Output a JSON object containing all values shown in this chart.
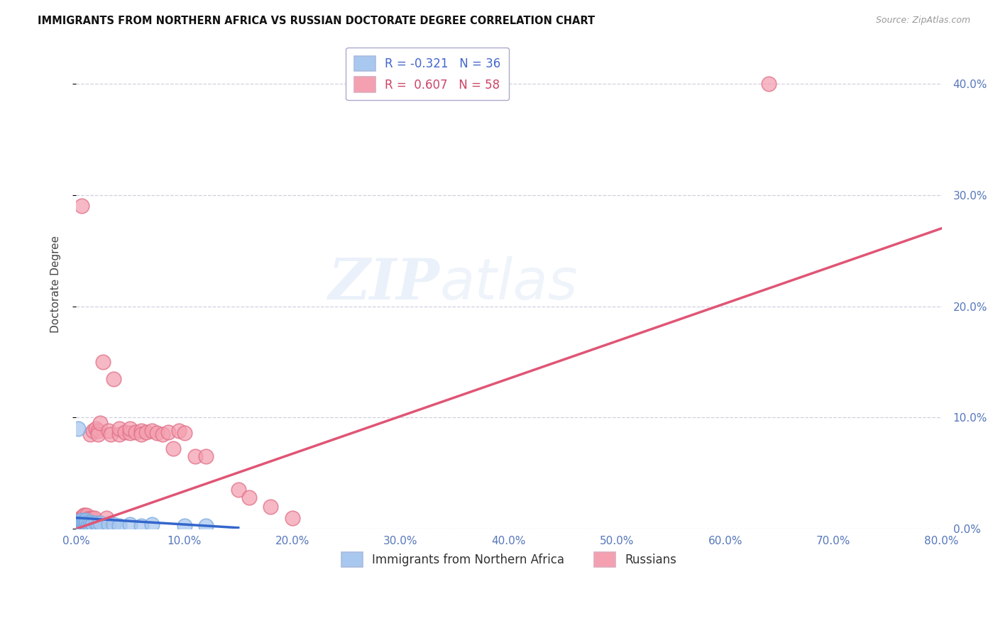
{
  "title": "IMMIGRANTS FROM NORTHERN AFRICA VS RUSSIAN DOCTORATE DEGREE CORRELATION CHART",
  "source": "Source: ZipAtlas.com",
  "ylabel": "Doctorate Degree",
  "xlim": [
    0,
    0.8
  ],
  "ylim": [
    0,
    0.44
  ],
  "xticks": [
    0.0,
    0.1,
    0.2,
    0.3,
    0.4,
    0.5,
    0.6,
    0.7,
    0.8
  ],
  "yticks": [
    0.0,
    0.1,
    0.2,
    0.3,
    0.4
  ],
  "legend_blue_r": "-0.321",
  "legend_blue_n": "36",
  "legend_pink_r": "0.607",
  "legend_pink_n": "58",
  "blue_color": "#a8c8f0",
  "pink_color": "#f4a0b0",
  "blue_line_color": "#3366cc",
  "pink_line_color": "#e05575",
  "blue_edge_color": "#7aaade",
  "pink_edge_color": "#e07088",
  "watermark_zip": "ZIP",
  "watermark_atlas": "atlas",
  "legend1_label": "Immigrants from Northern Africa",
  "legend2_label": "Russians",
  "blue_scatter_x": [
    0.001,
    0.002,
    0.003,
    0.003,
    0.004,
    0.004,
    0.005,
    0.005,
    0.006,
    0.006,
    0.007,
    0.007,
    0.008,
    0.008,
    0.009,
    0.009,
    0.01,
    0.01,
    0.011,
    0.012,
    0.013,
    0.014,
    0.015,
    0.016,
    0.018,
    0.02,
    0.022,
    0.03,
    0.035,
    0.04,
    0.05,
    0.06,
    0.07,
    0.1,
    0.12,
    0.002
  ],
  "blue_scatter_y": [
    0.005,
    0.004,
    0.003,
    0.006,
    0.005,
    0.007,
    0.004,
    0.008,
    0.005,
    0.006,
    0.004,
    0.007,
    0.005,
    0.006,
    0.004,
    0.008,
    0.005,
    0.006,
    0.004,
    0.005,
    0.004,
    0.006,
    0.005,
    0.004,
    0.005,
    0.004,
    0.005,
    0.004,
    0.004,
    0.003,
    0.004,
    0.003,
    0.004,
    0.003,
    0.003,
    0.09
  ],
  "pink_scatter_x": [
    0.001,
    0.002,
    0.003,
    0.003,
    0.004,
    0.004,
    0.005,
    0.005,
    0.006,
    0.006,
    0.007,
    0.007,
    0.008,
    0.008,
    0.009,
    0.009,
    0.01,
    0.01,
    0.011,
    0.012,
    0.013,
    0.014,
    0.015,
    0.016,
    0.017,
    0.018,
    0.02,
    0.02,
    0.022,
    0.025,
    0.028,
    0.03,
    0.032,
    0.035,
    0.04,
    0.04,
    0.045,
    0.05,
    0.05,
    0.055,
    0.06,
    0.06,
    0.065,
    0.07,
    0.075,
    0.08,
    0.085,
    0.09,
    0.095,
    0.1,
    0.11,
    0.12,
    0.15,
    0.16,
    0.18,
    0.2,
    0.64,
    0.005
  ],
  "pink_scatter_y": [
    0.004,
    0.006,
    0.005,
    0.008,
    0.006,
    0.01,
    0.005,
    0.009,
    0.006,
    0.01,
    0.007,
    0.012,
    0.008,
    0.012,
    0.007,
    0.01,
    0.008,
    0.012,
    0.009,
    0.008,
    0.085,
    0.009,
    0.01,
    0.088,
    0.01,
    0.09,
    0.088,
    0.085,
    0.095,
    0.15,
    0.01,
    0.088,
    0.085,
    0.135,
    0.085,
    0.09,
    0.087,
    0.086,
    0.09,
    0.087,
    0.088,
    0.085,
    0.087,
    0.088,
    0.086,
    0.085,
    0.087,
    0.072,
    0.088,
    0.086,
    0.065,
    0.065,
    0.035,
    0.028,
    0.02,
    0.01,
    0.4,
    0.29
  ],
  "blue_trend_x0": 0.0,
  "blue_trend_x1": 0.15,
  "blue_trend_y0": 0.01,
  "blue_trend_y1": 0.001,
  "pink_trend_x0": 0.0,
  "pink_trend_x1": 0.8,
  "pink_trend_y0": 0.0,
  "pink_trend_y1": 0.27
}
